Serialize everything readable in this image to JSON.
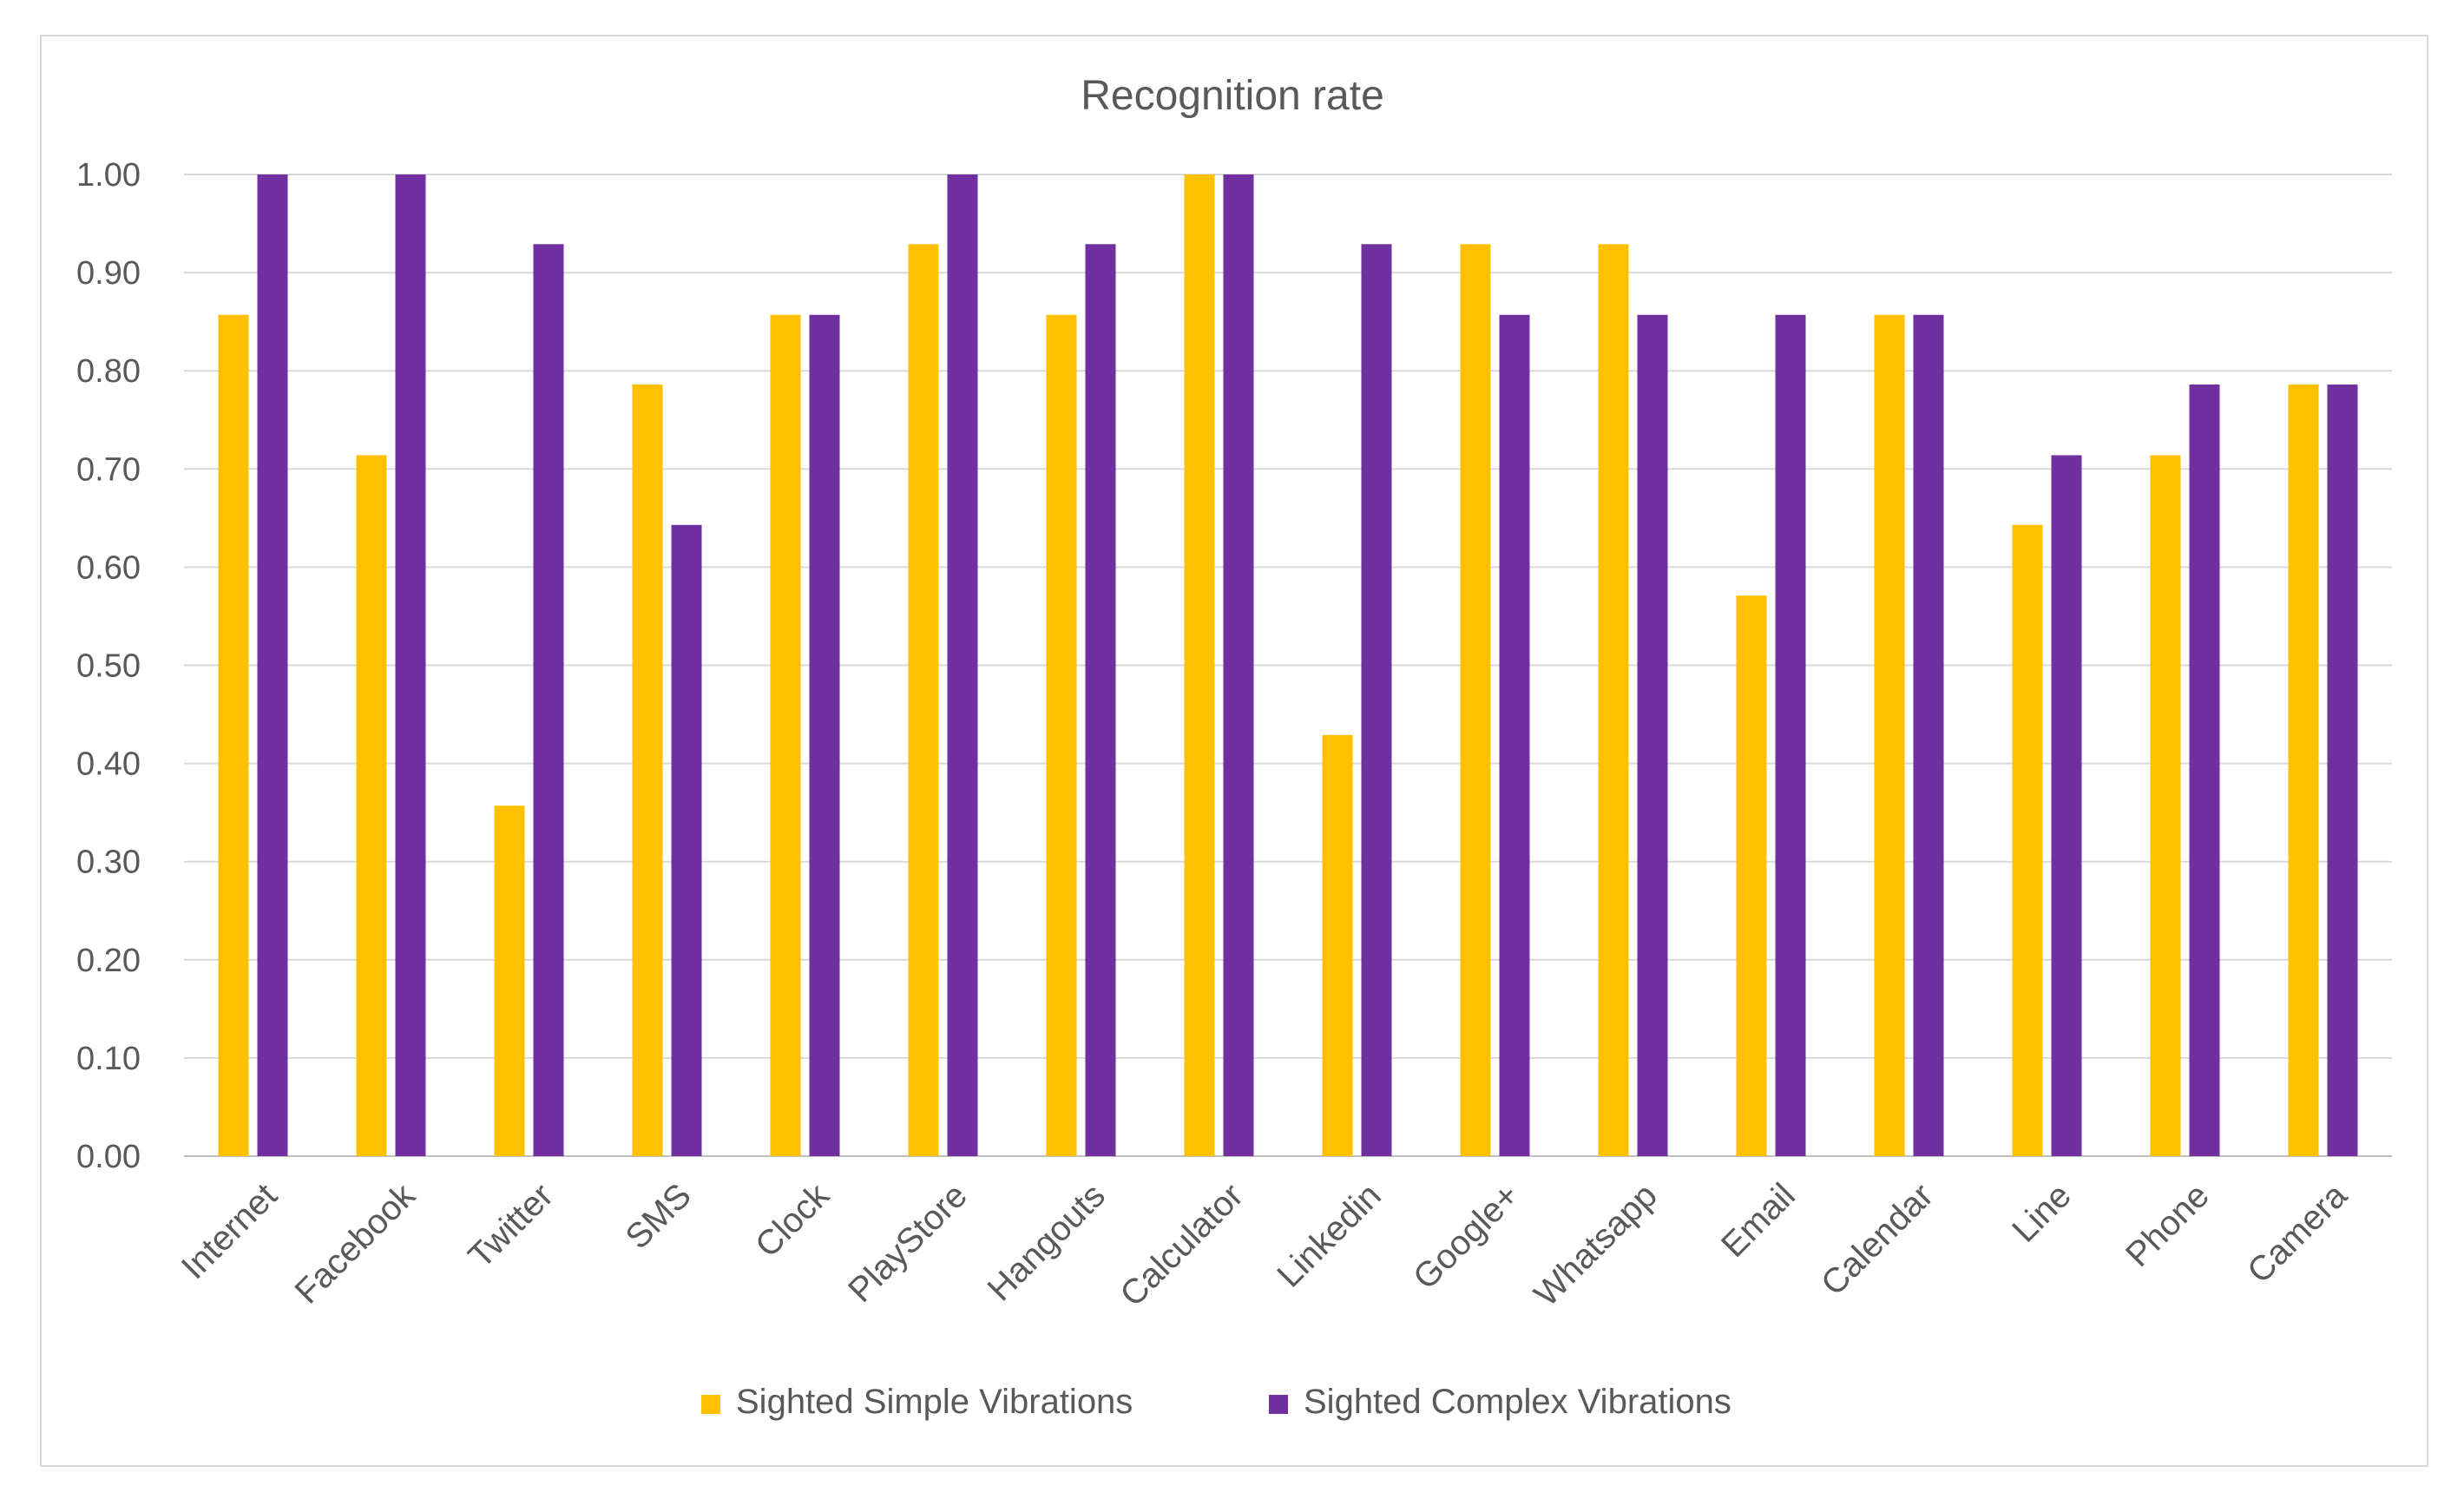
{
  "chart_data": {
    "type": "bar",
    "title": "Recognition rate",
    "xlabel": "",
    "ylabel": "",
    "ylim": [
      0,
      1
    ],
    "yticks": [
      "0.00",
      "0.10",
      "0.20",
      "0.30",
      "0.40",
      "0.50",
      "0.60",
      "0.70",
      "0.80",
      "0.90",
      "1.00"
    ],
    "grid": true,
    "legend_position": "bottom",
    "categories": [
      "Internet",
      "Facebook",
      "Twitter",
      "SMS",
      "Clock",
      "PlayStore",
      "Hangouts",
      "Calculator",
      "Linkedin",
      "Google+",
      "Whatsapp",
      "Email",
      "Calendar",
      "Line",
      "Phone",
      "Camera"
    ],
    "series": [
      {
        "name": "Sighted Simple Vibrations",
        "color": "#FFC000",
        "values": [
          0.857,
          0.714,
          0.357,
          0.786,
          0.857,
          0.929,
          0.857,
          1.0,
          0.429,
          0.929,
          0.929,
          0.571,
          0.857,
          0.643,
          0.714,
          0.786
        ]
      },
      {
        "name": "Sighted Complex Vibrations",
        "color": "#7030A0",
        "values": [
          1.0,
          1.0,
          0.929,
          0.643,
          0.857,
          1.0,
          0.929,
          1.0,
          0.929,
          0.857,
          0.857,
          0.857,
          0.857,
          0.714,
          0.786,
          0.786
        ]
      }
    ],
    "colors": {
      "gridline": "#d9d9d9",
      "text": "#595959",
      "axis": "#bfbfbf"
    }
  }
}
